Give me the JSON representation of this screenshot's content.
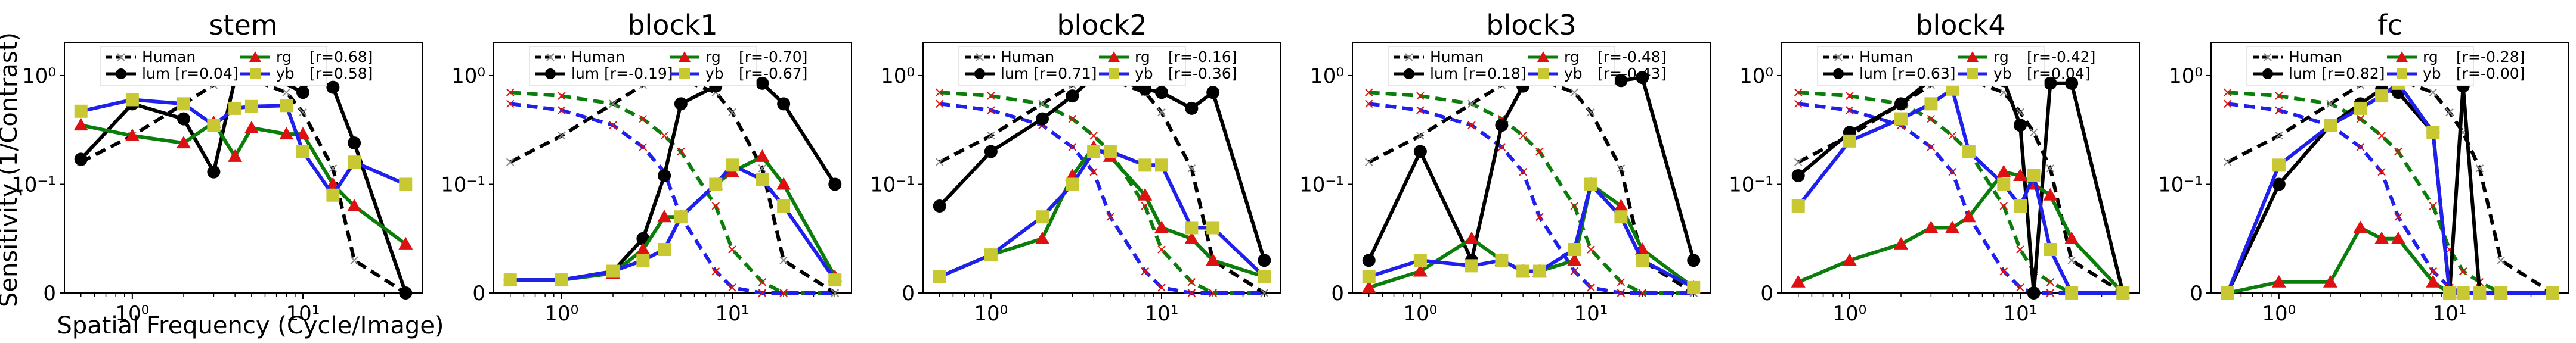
{
  "figure": {
    "ylabel": "Sensitivity (1/Contrast)",
    "xlabel": "Spatial Frequency (Cycle/Image)"
  },
  "colors": {
    "human": "#000000",
    "lum": "#000000",
    "rg_line": "#0a7d0a",
    "rg_marker": "#dd1111",
    "yb_line": "#1f1fee",
    "yb_marker": "#c8c832",
    "human_marker": "#888888"
  },
  "chart_data": [
    {
      "type": "line",
      "title": "stem",
      "xscale": "log",
      "yscale": "symlog",
      "ytick_labels": [
        "0",
        "10⁻¹",
        "10⁰"
      ],
      "xtick_labels": [
        "10⁰",
        "10¹"
      ],
      "grid": false,
      "legend_position": "top",
      "legend": [
        "Human",
        "lum [r=0.04]",
        "rg",
        "[r=0.68]",
        "yb",
        "[r=0.58]"
      ],
      "x": [
        0.5,
        1,
        2,
        3,
        4,
        5,
        8,
        10,
        15,
        20,
        40
      ],
      "human": [
        0.16,
        0.28,
        0.55,
        0.82,
        0.97,
        0.92,
        0.7,
        0.46,
        0.14,
        0.03,
        0.0
      ],
      "series": [
        {
          "name": "lum",
          "values": [
            0.17,
            0.55,
            0.4,
            0.13,
            0.93,
            0.93,
            0.7,
            0.97,
            0.78,
            0.24,
            0.0
          ],
          "x": [
            0.5,
            1,
            2,
            3,
            4,
            7,
            10,
            11,
            15,
            20,
            40
          ],
          "skip_last": true
        },
        {
          "name": "rg",
          "values": [
            0.35,
            0.28,
            0.24,
            0.37,
            0.18,
            0.33,
            0.29,
            0.29,
            0.1,
            0.08,
            0.045
          ]
        },
        {
          "name": "yb",
          "values": [
            0.47,
            0.6,
            0.55,
            0.35,
            0.5,
            0.52,
            0.53,
            0.2,
            0.09,
            0.16,
            0.1
          ]
        }
      ]
    },
    {
      "type": "line",
      "title": "block1",
      "xscale": "log",
      "yscale": "symlog",
      "ytick_labels": [
        "0",
        "10⁻¹",
        "10⁰"
      ],
      "xtick_labels": [
        "10⁰",
        "10¹"
      ],
      "grid": false,
      "legend_position": "top",
      "legend": [
        "Human",
        "lum [r=-0.19]",
        "rg",
        "[r=-0.70]",
        "yb",
        "[r=-0.67]"
      ],
      "x": [
        0.5,
        1,
        2,
        3,
        4,
        5,
        8,
        10,
        15,
        20,
        40
      ],
      "human": [
        0.16,
        0.28,
        0.55,
        0.82,
        0.97,
        0.92,
        0.7,
        0.46,
        0.14,
        0.03,
        0.0
      ],
      "series": [
        {
          "name": "lum",
          "values": [
            0.012,
            0.012,
            0.02,
            0.05,
            0.12,
            0.55,
            0.8,
            0.95,
            0.85,
            0.55,
            0.1
          ]
        },
        {
          "name": "rg",
          "values": [
            0.012,
            0.012,
            0.018,
            0.04,
            0.07,
            0.07,
            0.1,
            0.13,
            0.18,
            0.1,
            0.015
          ]
        },
        {
          "name": "yb",
          "values": [
            0.012,
            0.012,
            0.02,
            0.03,
            0.04,
            0.07,
            0.1,
            0.15,
            0.11,
            0.08,
            0.012
          ]
        },
        {
          "name": "human_rg",
          "values": [
            0.7,
            0.65,
            0.55,
            0.4,
            0.28,
            0.2,
            0.08,
            0.04,
            0.01,
            0.0,
            0.0
          ]
        },
        {
          "name": "human_yb",
          "values": [
            0.55,
            0.48,
            0.35,
            0.22,
            0.13,
            0.07,
            0.02,
            0.005,
            0.0,
            0.0,
            0.0
          ]
        }
      ]
    },
    {
      "type": "line",
      "title": "block2",
      "xscale": "log",
      "yscale": "symlog",
      "ytick_labels": [
        "0",
        "10⁻¹",
        "10⁰"
      ],
      "xtick_labels": [
        "10⁰",
        "10¹"
      ],
      "grid": false,
      "legend_position": "top",
      "legend": [
        "Human",
        "lum [r=0.71]",
        "rg",
        "[r=-0.16]",
        "yb",
        "[r=-0.36]"
      ],
      "x": [
        0.5,
        1,
        2,
        3,
        4,
        5,
        8,
        10,
        15,
        20,
        40
      ],
      "human": [
        0.16,
        0.28,
        0.55,
        0.82,
        0.97,
        0.92,
        0.7,
        0.46,
        0.14,
        0.03,
        0.0
      ],
      "series": [
        {
          "name": "lum",
          "values": [
            0.08,
            0.2,
            0.4,
            0.65,
            0.97,
            0.96,
            0.75,
            0.7,
            0.5,
            0.7,
            0.03
          ]
        },
        {
          "name": "rg",
          "values": [
            0.015,
            0.035,
            0.05,
            0.12,
            0.22,
            0.18,
            0.09,
            0.06,
            0.05,
            0.03,
            0.015
          ]
        },
        {
          "name": "yb",
          "values": [
            0.015,
            0.035,
            0.07,
            0.1,
            0.2,
            0.2,
            0.15,
            0.15,
            0.06,
            0.06,
            0.015
          ]
        },
        {
          "name": "human_rg",
          "values": [
            0.7,
            0.65,
            0.55,
            0.4,
            0.28,
            0.2,
            0.08,
            0.04,
            0.01,
            0.0,
            0.0
          ]
        },
        {
          "name": "human_yb",
          "values": [
            0.55,
            0.48,
            0.35,
            0.22,
            0.13,
            0.07,
            0.02,
            0.005,
            0.0,
            0.0,
            0.0
          ]
        }
      ]
    },
    {
      "type": "line",
      "title": "block3",
      "xscale": "log",
      "yscale": "symlog",
      "ytick_labels": [
        "0",
        "10⁻¹",
        "10⁰"
      ],
      "xtick_labels": [
        "10⁰",
        "10¹"
      ],
      "grid": false,
      "legend_position": "top",
      "legend": [
        "Human",
        "lum [r=0.18]",
        "rg",
        "[r=-0.48]",
        "yb",
        "[r=-0.43]"
      ],
      "x": [
        0.5,
        1,
        2,
        3,
        4,
        5,
        8,
        10,
        15,
        20,
        40
      ],
      "human": [
        0.16,
        0.28,
        0.55,
        0.82,
        0.97,
        0.92,
        0.7,
        0.46,
        0.14,
        0.03,
        0.0
      ],
      "series": [
        {
          "name": "lum",
          "values": [
            0.03,
            0.2,
            0.03,
            0.35,
            0.8,
            0.96,
            0.97,
            0.92,
            0.9,
            0.96,
            0.03
          ]
        },
        {
          "name": "rg",
          "values": [
            0.005,
            0.02,
            0.05,
            0.03,
            0.02,
            0.02,
            0.03,
            0.1,
            0.08,
            0.04,
            0.005
          ]
        },
        {
          "name": "yb",
          "values": [
            0.015,
            0.03,
            0.025,
            0.03,
            0.02,
            0.02,
            0.04,
            0.1,
            0.07,
            0.03,
            0.005
          ]
        },
        {
          "name": "human_rg",
          "values": [
            0.7,
            0.65,
            0.55,
            0.4,
            0.28,
            0.2,
            0.08,
            0.04,
            0.01,
            0.0,
            0.0
          ]
        },
        {
          "name": "human_yb",
          "values": [
            0.55,
            0.48,
            0.35,
            0.22,
            0.13,
            0.07,
            0.02,
            0.005,
            0.0,
            0.0,
            0.0
          ]
        }
      ]
    },
    {
      "type": "line",
      "title": "block4",
      "xscale": "log",
      "yscale": "symlog",
      "ytick_labels": [
        "0",
        "10⁻¹",
        "10⁰"
      ],
      "xtick_labels": [
        "10⁰",
        "10¹"
      ],
      "grid": false,
      "legend_position": "top",
      "legend": [
        "Human",
        "lum [r=0.63]",
        "rg",
        "[r=-0.42]",
        "yb",
        "[r=0.04]"
      ],
      "x": [
        0.5,
        1,
        2,
        3,
        4,
        5,
        8,
        10,
        12,
        15,
        20,
        40
      ],
      "human": [
        0.16,
        0.28,
        0.55,
        0.82,
        0.97,
        0.92,
        0.7,
        0.46,
        0.3,
        0.14,
        0.03,
        0.0
      ],
      "series": [
        {
          "name": "lum",
          "values": [
            0.12,
            0.3,
            0.55,
            0.92,
            0.97,
            0.95,
            0.9,
            0.35,
            0.0,
            0.85,
            0.85,
            0.0
          ]
        },
        {
          "name": "rg",
          "values": [
            0.01,
            0.03,
            0.045,
            0.06,
            0.06,
            0.07,
            0.13,
            0.12,
            0.1,
            0.09,
            0.05,
            0.0
          ]
        },
        {
          "name": "yb",
          "values": [
            0.08,
            0.25,
            0.4,
            0.55,
            0.75,
            0.2,
            0.1,
            0.08,
            0.12,
            0.04,
            0.0,
            0.0
          ]
        },
        {
          "name": "human_rg",
          "values": [
            0.7,
            0.65,
            0.55,
            0.4,
            0.28,
            0.2,
            0.08,
            0.04,
            0.02,
            0.01,
            0.0,
            0.0
          ]
        },
        {
          "name": "human_yb",
          "values": [
            0.55,
            0.48,
            0.35,
            0.22,
            0.13,
            0.07,
            0.02,
            0.005,
            0.0,
            0.0,
            0.0,
            0.0
          ]
        }
      ]
    },
    {
      "type": "line",
      "title": "fc",
      "xscale": "log",
      "yscale": "symlog",
      "ytick_labels": [
        "0",
        "10⁻¹",
        "10⁰"
      ],
      "xtick_labels": [
        "10⁰",
        "10¹"
      ],
      "grid": false,
      "legend_position": "top",
      "legend": [
        "Human",
        "lum [r=0.82]",
        "rg",
        "[r=-0.28]",
        "yb",
        "[r=-0.00]"
      ],
      "x": [
        0.5,
        1,
        2,
        3,
        4,
        5,
        8,
        10,
        12,
        15,
        20,
        40
      ],
      "human": [
        0.16,
        0.28,
        0.55,
        0.82,
        0.97,
        0.92,
        0.7,
        0.46,
        0.3,
        0.14,
        0.03,
        0.0
      ],
      "series": [
        {
          "name": "lum",
          "values": [
            0.0,
            0.1,
            0.35,
            0.55,
            0.75,
            0.7,
            0.3,
            0.0,
            0.8,
            0.0,
            0.0,
            0.0
          ]
        },
        {
          "name": "rg",
          "values": [
            0.0,
            0.01,
            0.01,
            0.06,
            0.05,
            0.05,
            0.01,
            0.0,
            0.0,
            0.0,
            0.0,
            0.0
          ]
        },
        {
          "name": "yb",
          "values": [
            0.0,
            0.15,
            0.35,
            0.5,
            0.65,
            0.85,
            0.3,
            0.0,
            0.0,
            0.0,
            0.0,
            0.0
          ]
        },
        {
          "name": "human_rg",
          "values": [
            0.7,
            0.65,
            0.55,
            0.4,
            0.28,
            0.2,
            0.08,
            0.04,
            0.02,
            0.01,
            0.0,
            0.0
          ]
        },
        {
          "name": "human_yb",
          "values": [
            0.55,
            0.48,
            0.35,
            0.22,
            0.13,
            0.07,
            0.02,
            0.005,
            0.0,
            0.0,
            0.0,
            0.0
          ]
        }
      ]
    }
  ]
}
